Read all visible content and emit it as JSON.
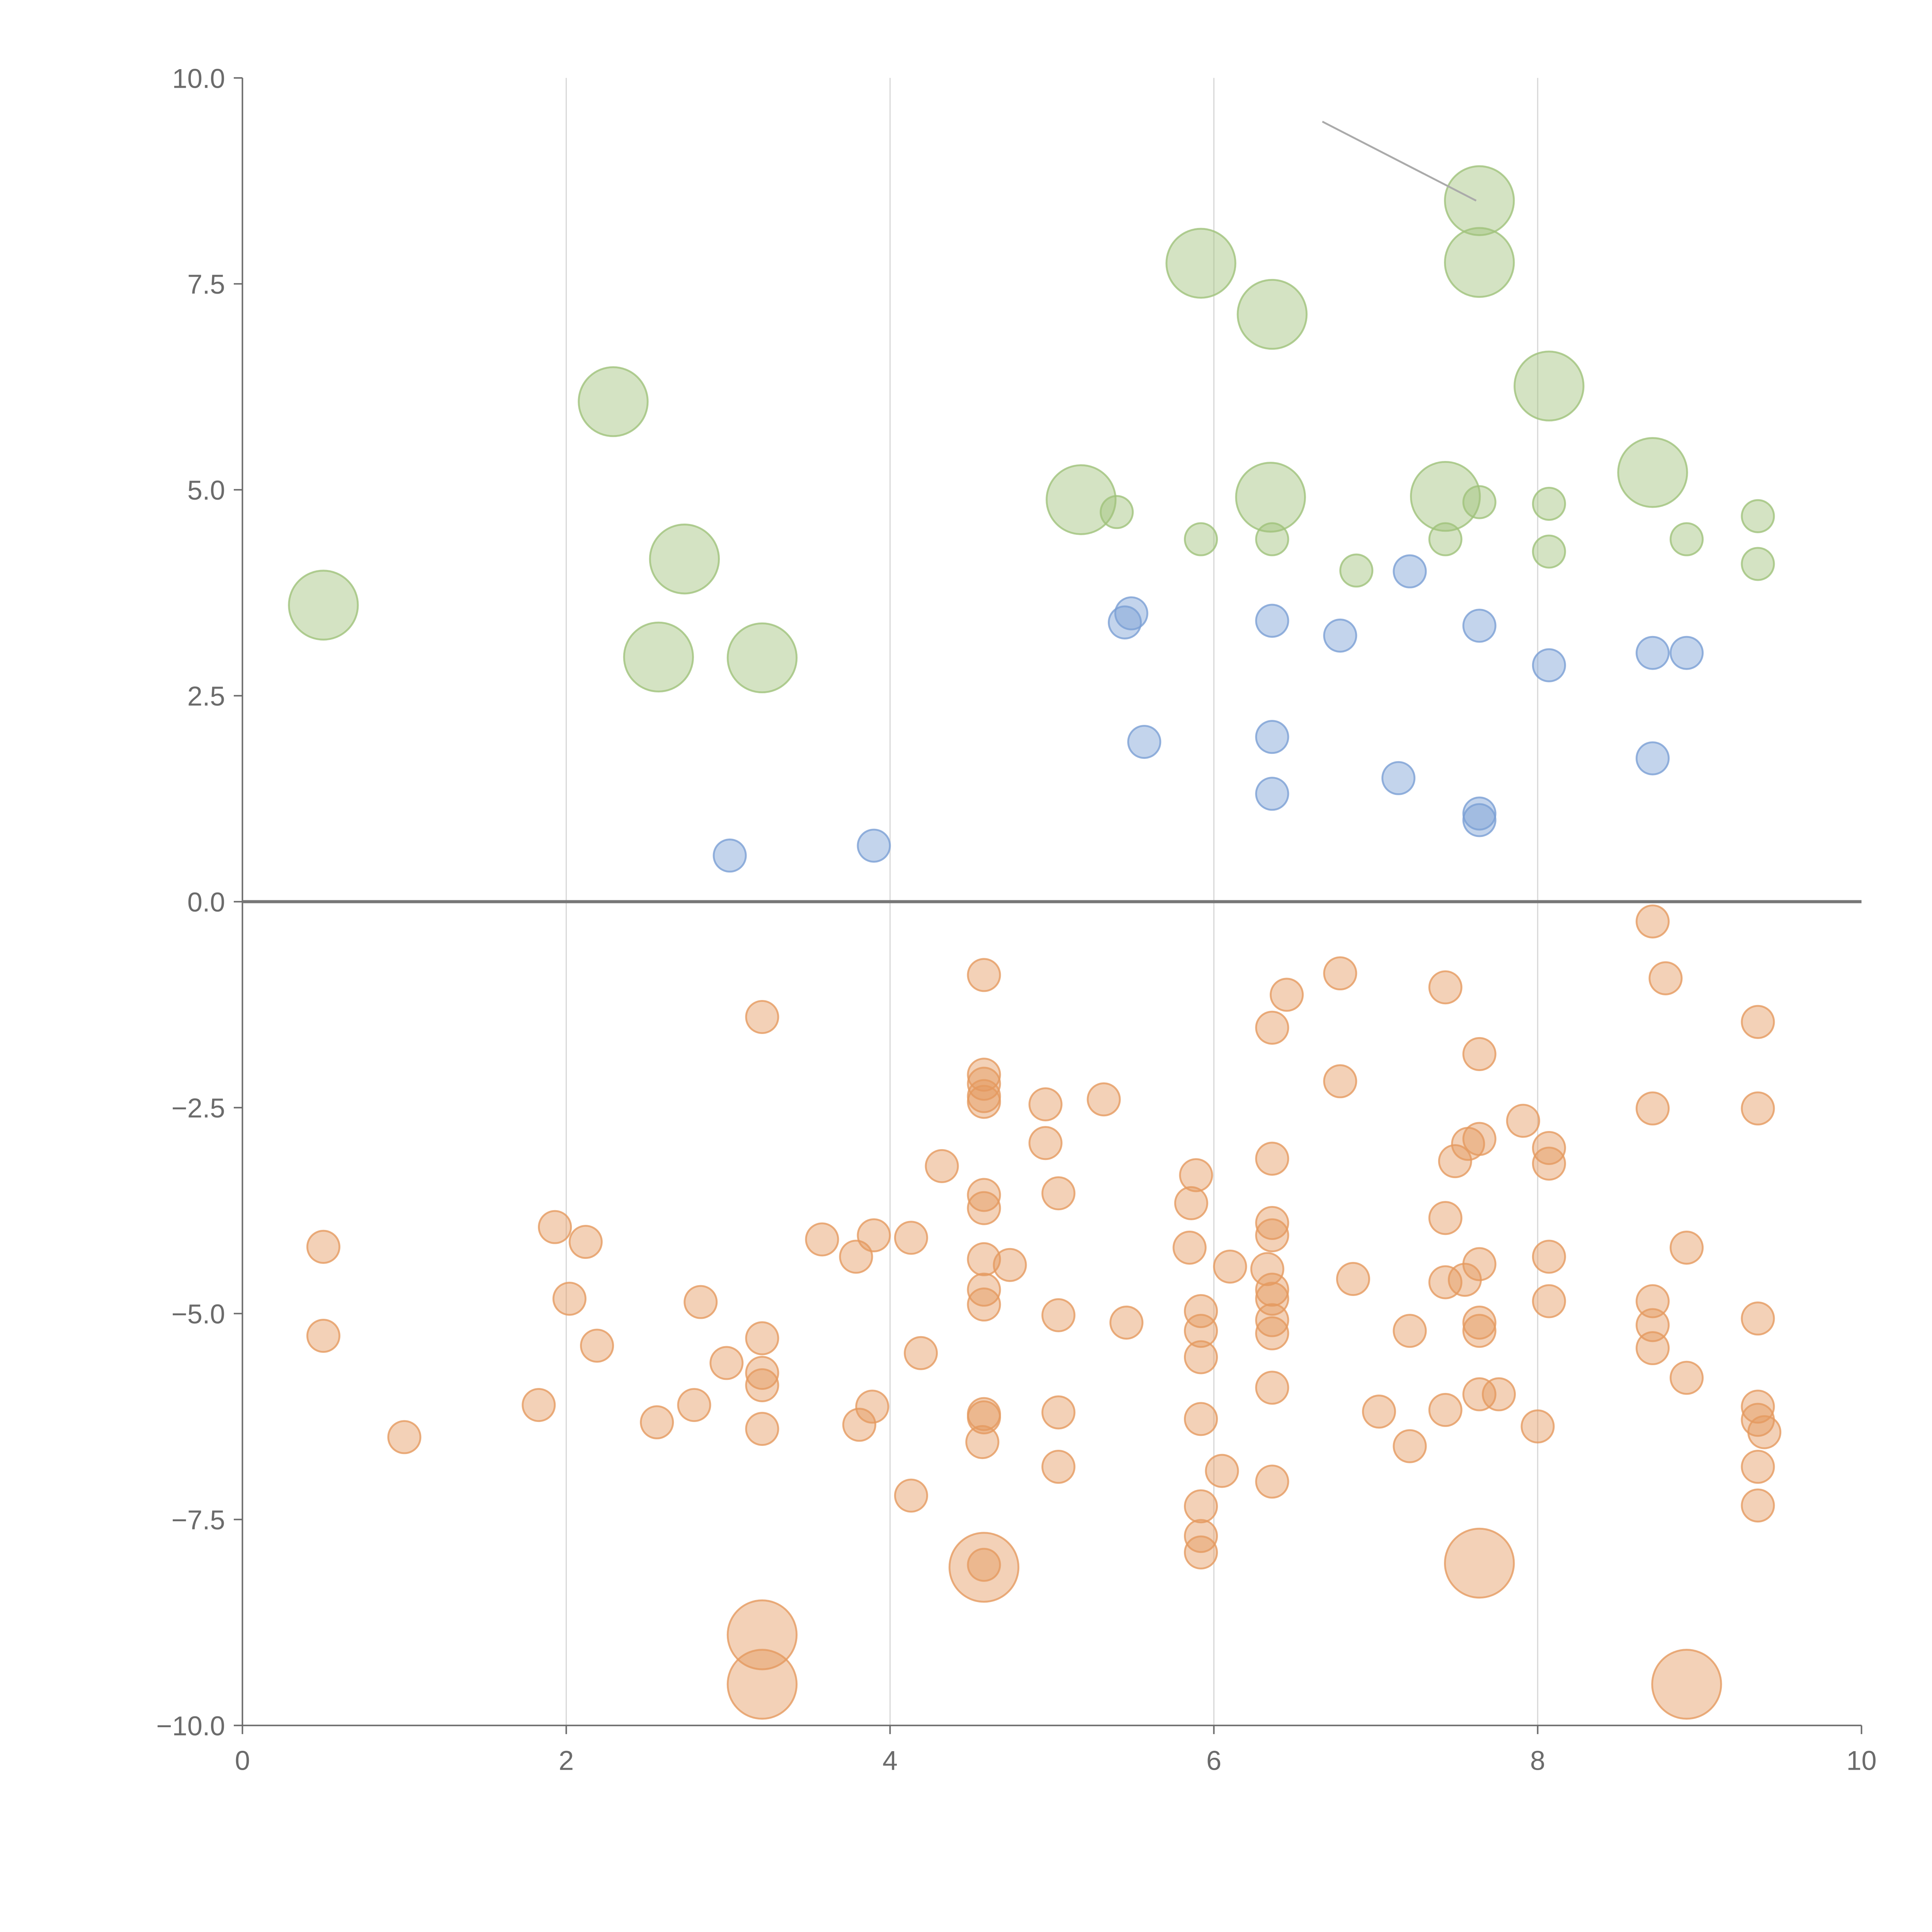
{
  "chart_data": {
    "type": "scatter",
    "title": "",
    "xlabel": "",
    "ylabel": "",
    "xlim": [
      0,
      10
    ],
    "ylim": [
      -10,
      10
    ],
    "xticks": [
      0,
      2,
      4,
      6,
      8,
      10
    ],
    "xtick_labels": [
      "0",
      "2",
      "4",
      "6",
      "8",
      "10"
    ],
    "yticks": [
      10,
      7.5,
      5,
      2.5,
      0,
      -2.5,
      -5,
      -7.5,
      -10
    ],
    "ytick_labels": [
      "10.0",
      "7.5",
      "5.0",
      "2.5",
      "0.0",
      "−2.5",
      "−5.0",
      "−7.5",
      "−10.0"
    ],
    "grid": "vertical",
    "legend": "none",
    "annotation_line": {
      "from": [
        6.67,
        9.47
      ],
      "to": [
        7.62,
        8.51
      ]
    },
    "series": [
      {
        "name": "green",
        "color": "#9fc27a",
        "points": [
          [
            0.5,
            3.6,
            4.6
          ],
          [
            2.29,
            6.07,
            4.6
          ],
          [
            2.73,
            4.16,
            4.6
          ],
          [
            2.57,
            2.97,
            4.6
          ],
          [
            3.21,
            2.96,
            4.6
          ],
          [
            5.18,
            4.88,
            4.6
          ],
          [
            5.92,
            7.75,
            4.6
          ],
          [
            6.36,
            7.13,
            4.6
          ],
          [
            6.35,
            4.91,
            4.6
          ],
          [
            7.43,
            4.92,
            4.6
          ],
          [
            7.64,
            8.51,
            4.6
          ],
          [
            7.64,
            7.76,
            4.6
          ],
          [
            8.07,
            6.26,
            4.6
          ],
          [
            8.71,
            5.21,
            4.6
          ],
          [
            5.4,
            4.73,
            1
          ],
          [
            5.92,
            4.4,
            1
          ],
          [
            6.36,
            4.4,
            1
          ],
          [
            6.88,
            4.02,
            1
          ],
          [
            7.43,
            4.4,
            1
          ],
          [
            7.64,
            4.85,
            1
          ],
          [
            8.07,
            4.83,
            1
          ],
          [
            8.07,
            4.25,
            1
          ],
          [
            8.92,
            4.4,
            1
          ],
          [
            9.36,
            4.68,
            1
          ],
          [
            9.36,
            4.1,
            1
          ]
        ]
      },
      {
        "name": "blue",
        "color": "#7a9fd4",
        "points": [
          [
            3.01,
            0.56,
            1
          ],
          [
            3.9,
            0.68,
            1
          ],
          [
            5.45,
            3.39,
            1
          ],
          [
            5.49,
            3.5,
            1
          ],
          [
            5.57,
            1.94,
            1
          ],
          [
            6.36,
            3.41,
            1
          ],
          [
            6.36,
            2.0,
            1
          ],
          [
            6.36,
            1.31,
            1
          ],
          [
            6.78,
            3.23,
            1
          ],
          [
            7.14,
            1.5,
            1
          ],
          [
            7.21,
            4.01,
            1
          ],
          [
            7.64,
            3.35,
            1
          ],
          [
            7.64,
            1.07,
            1
          ],
          [
            7.64,
            0.99,
            1
          ],
          [
            8.07,
            2.87,
            1
          ],
          [
            8.71,
            3.02,
            1
          ],
          [
            8.92,
            3.02,
            1
          ],
          [
            8.71,
            1.74,
            1
          ]
        ]
      },
      {
        "name": "orange",
        "color": "#e59a5f",
        "points": [
          [
            4.58,
            -8.08,
            4.6
          ],
          [
            3.21,
            -8.9,
            4.6
          ],
          [
            3.21,
            -9.5,
            4.6
          ],
          [
            7.64,
            -8.03,
            4.6
          ],
          [
            8.92,
            -9.5,
            4.6
          ],
          [
            0.5,
            -4.19,
            1
          ],
          [
            0.5,
            -5.27,
            1
          ],
          [
            1.0,
            -6.5,
            1
          ],
          [
            1.83,
            -6.11,
            1
          ],
          [
            1.93,
            -3.95,
            1
          ],
          [
            2.02,
            -4.82,
            1
          ],
          [
            2.12,
            -4.13,
            1
          ],
          [
            2.19,
            -5.39,
            1
          ],
          [
            2.56,
            -6.32,
            1
          ],
          [
            2.79,
            -6.11,
            1
          ],
          [
            2.83,
            -4.86,
            1
          ],
          [
            2.99,
            -5.6,
            1
          ],
          [
            3.21,
            -1.4,
            1
          ],
          [
            3.21,
            -5.3,
            1
          ],
          [
            3.21,
            -5.72,
            1
          ],
          [
            3.21,
            -5.87,
            1
          ],
          [
            3.21,
            -6.4,
            1
          ],
          [
            3.58,
            -4.1,
            1
          ],
          [
            3.79,
            -4.31,
            1
          ],
          [
            3.81,
            -6.35,
            1
          ],
          [
            3.89,
            -6.13,
            1
          ],
          [
            3.9,
            -4.05,
            1
          ],
          [
            4.13,
            -4.08,
            1
          ],
          [
            4.13,
            -7.21,
            1
          ],
          [
            4.19,
            -5.48,
            1
          ],
          [
            4.32,
            -3.21,
            1
          ],
          [
            4.58,
            -0.89,
            1
          ],
          [
            4.58,
            -2.1,
            1
          ],
          [
            4.58,
            -2.21,
            1
          ],
          [
            4.58,
            -2.36,
            1
          ],
          [
            4.58,
            -2.43,
            1
          ],
          [
            4.58,
            -3.56,
            1
          ],
          [
            4.58,
            -3.72,
            1
          ],
          [
            4.58,
            -4.34,
            1
          ],
          [
            4.58,
            -4.71,
            1
          ],
          [
            4.58,
            -4.89,
            1
          ],
          [
            4.58,
            -6.22,
            1
          ],
          [
            4.58,
            -6.26,
            1
          ],
          [
            4.57,
            -6.56,
            1
          ],
          [
            4.58,
            -8.05,
            1
          ],
          [
            4.74,
            -4.41,
            1
          ],
          [
            4.96,
            -2.46,
            1
          ],
          [
            4.96,
            -2.93,
            1
          ],
          [
            5.04,
            -3.54,
            1
          ],
          [
            5.04,
            -5.02,
            1
          ],
          [
            5.04,
            -6.2,
            1
          ],
          [
            5.04,
            -6.86,
            1
          ],
          [
            5.32,
            -2.4,
            1
          ],
          [
            5.46,
            -5.11,
            1
          ],
          [
            5.85,
            -4.2,
            1
          ],
          [
            5.86,
            -3.66,
            1
          ],
          [
            5.89,
            -3.32,
            1
          ],
          [
            5.92,
            -4.97,
            1
          ],
          [
            5.92,
            -5.21,
            1
          ],
          [
            5.92,
            -5.53,
            1
          ],
          [
            5.92,
            -6.28,
            1
          ],
          [
            5.92,
            -7.34,
            1
          ],
          [
            5.92,
            -7.7,
            1
          ],
          [
            5.92,
            -7.9,
            1
          ],
          [
            6.05,
            -6.91,
            1
          ],
          [
            6.1,
            -4.43,
            1
          ],
          [
            6.33,
            -4.46,
            1
          ],
          [
            6.36,
            -1.53,
            1
          ],
          [
            6.36,
            -3.12,
            1
          ],
          [
            6.36,
            -3.9,
            1
          ],
          [
            6.36,
            -4.05,
            1
          ],
          [
            6.36,
            -4.71,
            1
          ],
          [
            6.36,
            -4.82,
            1
          ],
          [
            6.36,
            -5.08,
            1
          ],
          [
            6.36,
            -5.24,
            1
          ],
          [
            6.36,
            -5.9,
            1
          ],
          [
            6.36,
            -7.04,
            1
          ],
          [
            6.45,
            -1.13,
            1
          ],
          [
            6.78,
            -0.87,
            1
          ],
          [
            6.78,
            -2.18,
            1
          ],
          [
            6.86,
            -4.58,
            1
          ],
          [
            7.02,
            -6.19,
            1
          ],
          [
            7.21,
            -5.21,
            1
          ],
          [
            7.21,
            -6.61,
            1
          ],
          [
            7.43,
            -1.04,
            1
          ],
          [
            7.43,
            -3.84,
            1
          ],
          [
            7.43,
            -4.62,
            1
          ],
          [
            7.43,
            -6.17,
            1
          ],
          [
            7.49,
            -3.15,
            1
          ],
          [
            7.55,
            -4.59,
            1
          ],
          [
            7.57,
            -2.94,
            1
          ],
          [
            7.64,
            -1.85,
            1
          ],
          [
            7.64,
            -2.88,
            1
          ],
          [
            7.64,
            -4.4,
            1
          ],
          [
            7.64,
            -5.11,
            1
          ],
          [
            7.64,
            -5.21,
            1
          ],
          [
            7.64,
            -5.98,
            1
          ],
          [
            7.76,
            -5.98,
            1
          ],
          [
            7.91,
            -2.66,
            1
          ],
          [
            8.0,
            -6.37,
            1
          ],
          [
            8.07,
            -2.99,
            1
          ],
          [
            8.07,
            -3.18,
            1
          ],
          [
            8.07,
            -4.31,
            1
          ],
          [
            8.07,
            -4.85,
            1
          ],
          [
            8.71,
            -0.24,
            1
          ],
          [
            8.79,
            -0.93,
            1
          ],
          [
            8.71,
            -2.51,
            1
          ],
          [
            8.71,
            -4.85,
            1
          ],
          [
            8.71,
            -5.14,
            1
          ],
          [
            8.71,
            -5.42,
            1
          ],
          [
            8.92,
            -4.2,
            1
          ],
          [
            8.92,
            -5.78,
            1
          ],
          [
            9.36,
            -1.46,
            1
          ],
          [
            9.36,
            -2.51,
            1
          ],
          [
            9.36,
            -5.06,
            1
          ],
          [
            9.36,
            -6.13,
            1
          ],
          [
            9.36,
            -6.29,
            1
          ],
          [
            9.4,
            -6.44,
            1
          ],
          [
            9.36,
            -6.86,
            1
          ],
          [
            9.36,
            -7.33,
            1
          ]
        ]
      }
    ]
  }
}
